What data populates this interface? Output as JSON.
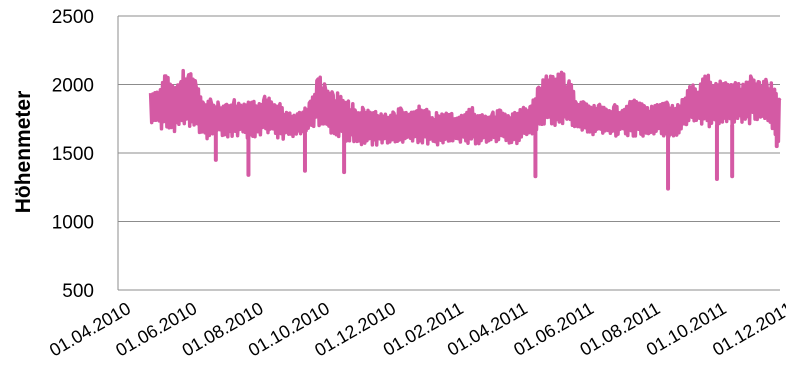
{
  "chart_data": {
    "type": "line",
    "title": "",
    "xlabel": "",
    "ylabel": "Höhenmeter",
    "ylim": [
      500,
      2500
    ],
    "yticks": [
      "500",
      "1000",
      "1500",
      "2000",
      "2500"
    ],
    "xlim": [
      "2010-04-01",
      "2011-12-01"
    ],
    "xticks": [
      {
        "date": "2010-04-01",
        "label": "01.04.2010"
      },
      {
        "date": "2010-06-01",
        "label": "01.06.2010"
      },
      {
        "date": "2010-08-01",
        "label": "01.08.2010"
      },
      {
        "date": "2010-10-01",
        "label": "01.10.2010"
      },
      {
        "date": "2010-12-01",
        "label": "01.12.2010"
      },
      {
        "date": "2011-02-01",
        "label": "01.02.2011"
      },
      {
        "date": "2011-04-01",
        "label": "01.04.2011"
      },
      {
        "date": "2011-06-01",
        "label": "01.06.2011"
      },
      {
        "date": "2011-08-01",
        "label": "01.08.2011"
      },
      {
        "date": "2011-10-01",
        "label": "01.10.2011"
      },
      {
        "date": "2011-12-01",
        "label": "01.12.2011"
      }
    ],
    "grid": "horizontal",
    "legend": "none",
    "series_color": "#d45aa4",
    "series": [
      {
        "x": [
          "2010-05-01",
          "2010-05-08",
          "2010-05-15",
          "2010-05-22",
          "2010-05-29",
          "2010-06-05",
          "2010-06-12",
          "2010-06-19",
          "2010-06-26",
          "2010-07-03",
          "2010-07-10",
          "2010-07-17",
          "2010-07-24",
          "2010-07-31",
          "2010-08-07",
          "2010-08-14",
          "2010-08-21",
          "2010-08-28",
          "2010-09-04",
          "2010-09-11",
          "2010-09-18",
          "2010-09-25",
          "2010-10-02",
          "2010-10-09",
          "2010-10-16",
          "2010-10-23",
          "2010-10-30",
          "2010-11-06",
          "2010-11-13",
          "2010-11-20",
          "2010-11-27",
          "2010-12-04",
          "2010-12-11",
          "2010-12-18",
          "2010-12-25",
          "2011-01-01",
          "2011-01-08",
          "2011-01-15",
          "2011-01-22",
          "2011-01-29",
          "2011-02-05",
          "2011-02-12",
          "2011-02-19",
          "2011-02-26",
          "2011-03-05",
          "2011-03-12",
          "2011-03-19",
          "2011-03-26",
          "2011-04-02",
          "2011-04-09",
          "2011-04-16",
          "2011-04-23",
          "2011-04-30",
          "2011-05-07",
          "2011-05-14",
          "2011-05-21",
          "2011-05-28",
          "2011-06-04",
          "2011-06-11",
          "2011-06-18",
          "2011-06-25",
          "2011-07-02",
          "2011-07-09",
          "2011-07-16",
          "2011-07-23",
          "2011-07-30",
          "2011-08-06",
          "2011-08-13",
          "2011-08-20",
          "2011-08-27",
          "2011-09-03",
          "2011-09-10",
          "2011-09-17",
          "2011-09-24",
          "2011-10-01",
          "2011-10-08",
          "2011-10-15",
          "2011-10-22",
          "2011-10-29",
          "2011-11-05",
          "2011-11-12",
          "2011-11-19",
          "2011-11-26",
          "2011-12-01"
        ],
        "high": [
          2000,
          1960,
          2080,
          2000,
          2100,
          2110,
          2020,
          1920,
          1900,
          1880,
          1900,
          1910,
          1890,
          1880,
          1900,
          1920,
          1890,
          1860,
          1800,
          1780,
          1820,
          1880,
          2080,
          2000,
          1960,
          1940,
          1900,
          1840,
          1860,
          1820,
          1800,
          1780,
          1820,
          1840,
          1800,
          1850,
          1830,
          1790,
          1800,
          1820,
          1780,
          1800,
          1840,
          1810,
          1780,
          1800,
          1820,
          1780,
          1800,
          1840,
          1860,
          2000,
          2080,
          2060,
          2100,
          2040,
          1900,
          1880,
          1850,
          1860,
          1830,
          1860,
          1820,
          1880,
          1890,
          1860,
          1840,
          1870,
          1880,
          1850,
          1900,
          2000,
          1990,
          2080,
          2060,
          2040,
          2000,
          2080,
          2010,
          2080,
          2020,
          2040,
          2000,
          1940
        ],
        "low": [
          1720,
          1700,
          1640,
          1620,
          1680,
          1700,
          1660,
          1600,
          1580,
          1620,
          1580,
          1600,
          1620,
          1600,
          1620,
          1640,
          1620,
          1600,
          1600,
          1620,
          1640,
          1680,
          1700,
          1640,
          1620,
          1600,
          1580,
          1560,
          1560,
          1550,
          1560,
          1570,
          1550,
          1560,
          1580,
          1560,
          1560,
          1570,
          1550,
          1560,
          1560,
          1580,
          1560,
          1560,
          1580,
          1560,
          1600,
          1570,
          1560,
          1620,
          1600,
          1640,
          1680,
          1700,
          1660,
          1700,
          1650,
          1640,
          1620,
          1640,
          1640,
          1620,
          1640,
          1600,
          1620,
          1600,
          1620,
          1630,
          1600,
          1620,
          1660,
          1720,
          1700,
          1700,
          1660,
          1680,
          1680,
          1700,
          1700,
          1720,
          1720,
          1680,
          1600,
          1540
        ],
        "dips": [
          {
            "x": "2010-06-30",
            "y": 1450
          },
          {
            "x": "2010-07-30",
            "y": 1340
          },
          {
            "x": "2010-09-20",
            "y": 1370
          },
          {
            "x": "2010-10-26",
            "y": 1360
          },
          {
            "x": "2011-04-20",
            "y": 1330
          },
          {
            "x": "2011-08-20",
            "y": 1240
          },
          {
            "x": "2011-10-04",
            "y": 1310
          },
          {
            "x": "2011-10-18",
            "y": 1330
          },
          {
            "x": "2011-11-28",
            "y": 1550
          }
        ]
      }
    ]
  }
}
